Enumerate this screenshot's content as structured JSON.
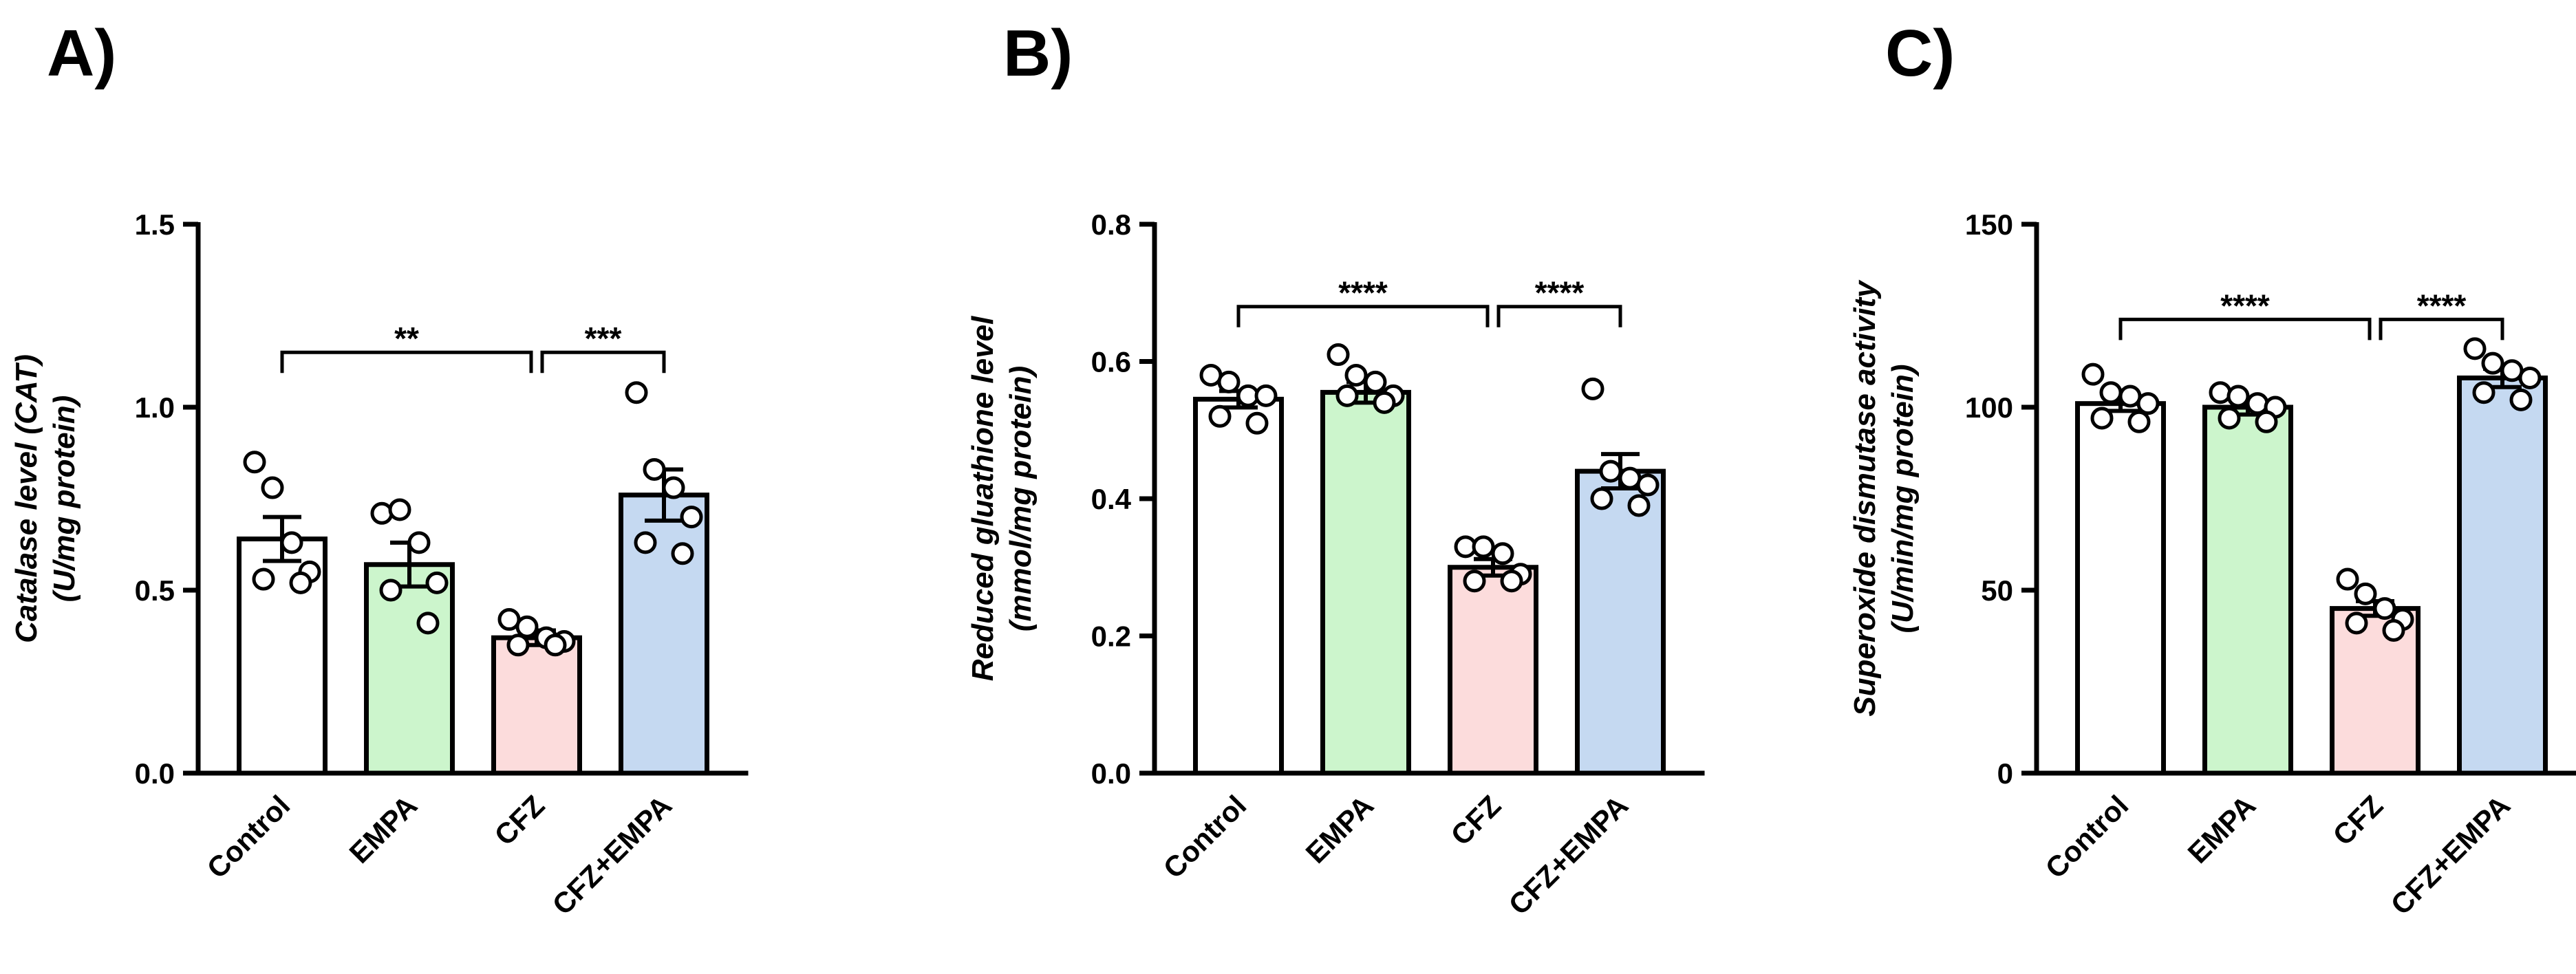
{
  "chart_data": [
    {
      "type": "bar",
      "title": "A)",
      "ylabel": "Catalase level (CAT)",
      "ylabel_unit": "(U/mg protein)",
      "categories": [
        "Control",
        "EMPA",
        "CFZ",
        "CFZ+EMPA"
      ],
      "values": [
        0.64,
        0.57,
        0.37,
        0.76
      ],
      "errors": [
        0.06,
        0.06,
        0.02,
        0.07
      ],
      "points": [
        [
          0.85,
          0.78,
          0.63,
          0.55,
          0.53,
          0.52
        ],
        [
          0.71,
          0.72,
          0.63,
          0.52,
          0.5,
          0.41
        ],
        [
          0.42,
          0.4,
          0.37,
          0.36,
          0.35,
          0.35
        ],
        [
          1.04,
          0.83,
          0.78,
          0.7,
          0.63,
          0.6
        ]
      ],
      "colors": [
        "#ffffff",
        "#ccf5cc",
        "#fcdcdc",
        "#c5d9f1"
      ],
      "ylim": [
        0,
        1.5
      ],
      "yticks": [
        {
          "value": 0,
          "label": "0.0"
        },
        0.5,
        {
          "value": 1,
          "label": "1.0"
        },
        1.5
      ],
      "brackets": [
        {
          "groups": [
            "Control",
            "CFZ"
          ],
          "label": "**",
          "y": 1.15
        },
        {
          "groups": [
            "CFZ",
            "CFZ+EMPA"
          ],
          "label": "***",
          "y": 1.15
        }
      ]
    },
    {
      "type": "bar",
      "title": "B)",
      "ylabel": "Reduced gluathione level",
      "ylabel_unit": "(mmol/mg protein)",
      "categories": [
        "Control",
        "EMPA",
        "CFZ",
        "CFZ+EMPA"
      ],
      "values": [
        0.545,
        0.555,
        0.3,
        0.44
      ],
      "errors": [
        0.012,
        0.015,
        0.012,
        0.025
      ],
      "points": [
        [
          0.58,
          0.57,
          0.55,
          0.55,
          0.52,
          0.51
        ],
        [
          0.61,
          0.58,
          0.57,
          0.55,
          0.55,
          0.54
        ],
        [
          0.33,
          0.33,
          0.32,
          0.29,
          0.28,
          0.28
        ],
        [
          0.56,
          0.44,
          0.43,
          0.42,
          0.4,
          0.39
        ]
      ],
      "colors": [
        "#ffffff",
        "#ccf5cc",
        "#fcdcdc",
        "#c5d9f1"
      ],
      "ylim": [
        0,
        0.8
      ],
      "yticks": [
        {
          "value": 0,
          "label": "0.0"
        },
        0.2,
        0.4,
        0.6,
        0.8
      ],
      "brackets": [
        {
          "groups": [
            "Control",
            "CFZ"
          ],
          "label": "****",
          "y": 0.68
        },
        {
          "groups": [
            "CFZ",
            "CFZ+EMPA"
          ],
          "label": "****",
          "y": 0.68
        }
      ]
    },
    {
      "type": "bar",
      "title": "C)",
      "ylabel": "Superoxide dismutase activity",
      "ylabel_unit": "(U/min/mg protein)",
      "categories": [
        "Control",
        "EMPA",
        "CFZ",
        "CFZ+EMPA"
      ],
      "values": [
        101,
        100,
        45,
        108
      ],
      "errors": [
        2,
        2,
        2,
        2.5
      ],
      "points": [
        [
          109,
          104,
          103,
          101,
          97,
          96
        ],
        [
          104,
          103,
          101,
          100,
          97,
          96
        ],
        [
          53,
          49,
          45,
          42,
          41,
          39
        ],
        [
          116,
          112,
          110,
          108,
          104,
          102
        ]
      ],
      "colors": [
        "#ffffff",
        "#ccf5cc",
        "#fcdcdc",
        "#c5d9f1"
      ],
      "ylim": [
        0,
        150
      ],
      "yticks": [
        0,
        50,
        100,
        150
      ],
      "brackets": [
        {
          "groups": [
            "Control",
            "CFZ"
          ],
          "label": "****",
          "y": 124
        },
        {
          "groups": [
            "CFZ",
            "CFZ+EMPA"
          ],
          "label": "****",
          "y": 124
        }
      ]
    }
  ]
}
